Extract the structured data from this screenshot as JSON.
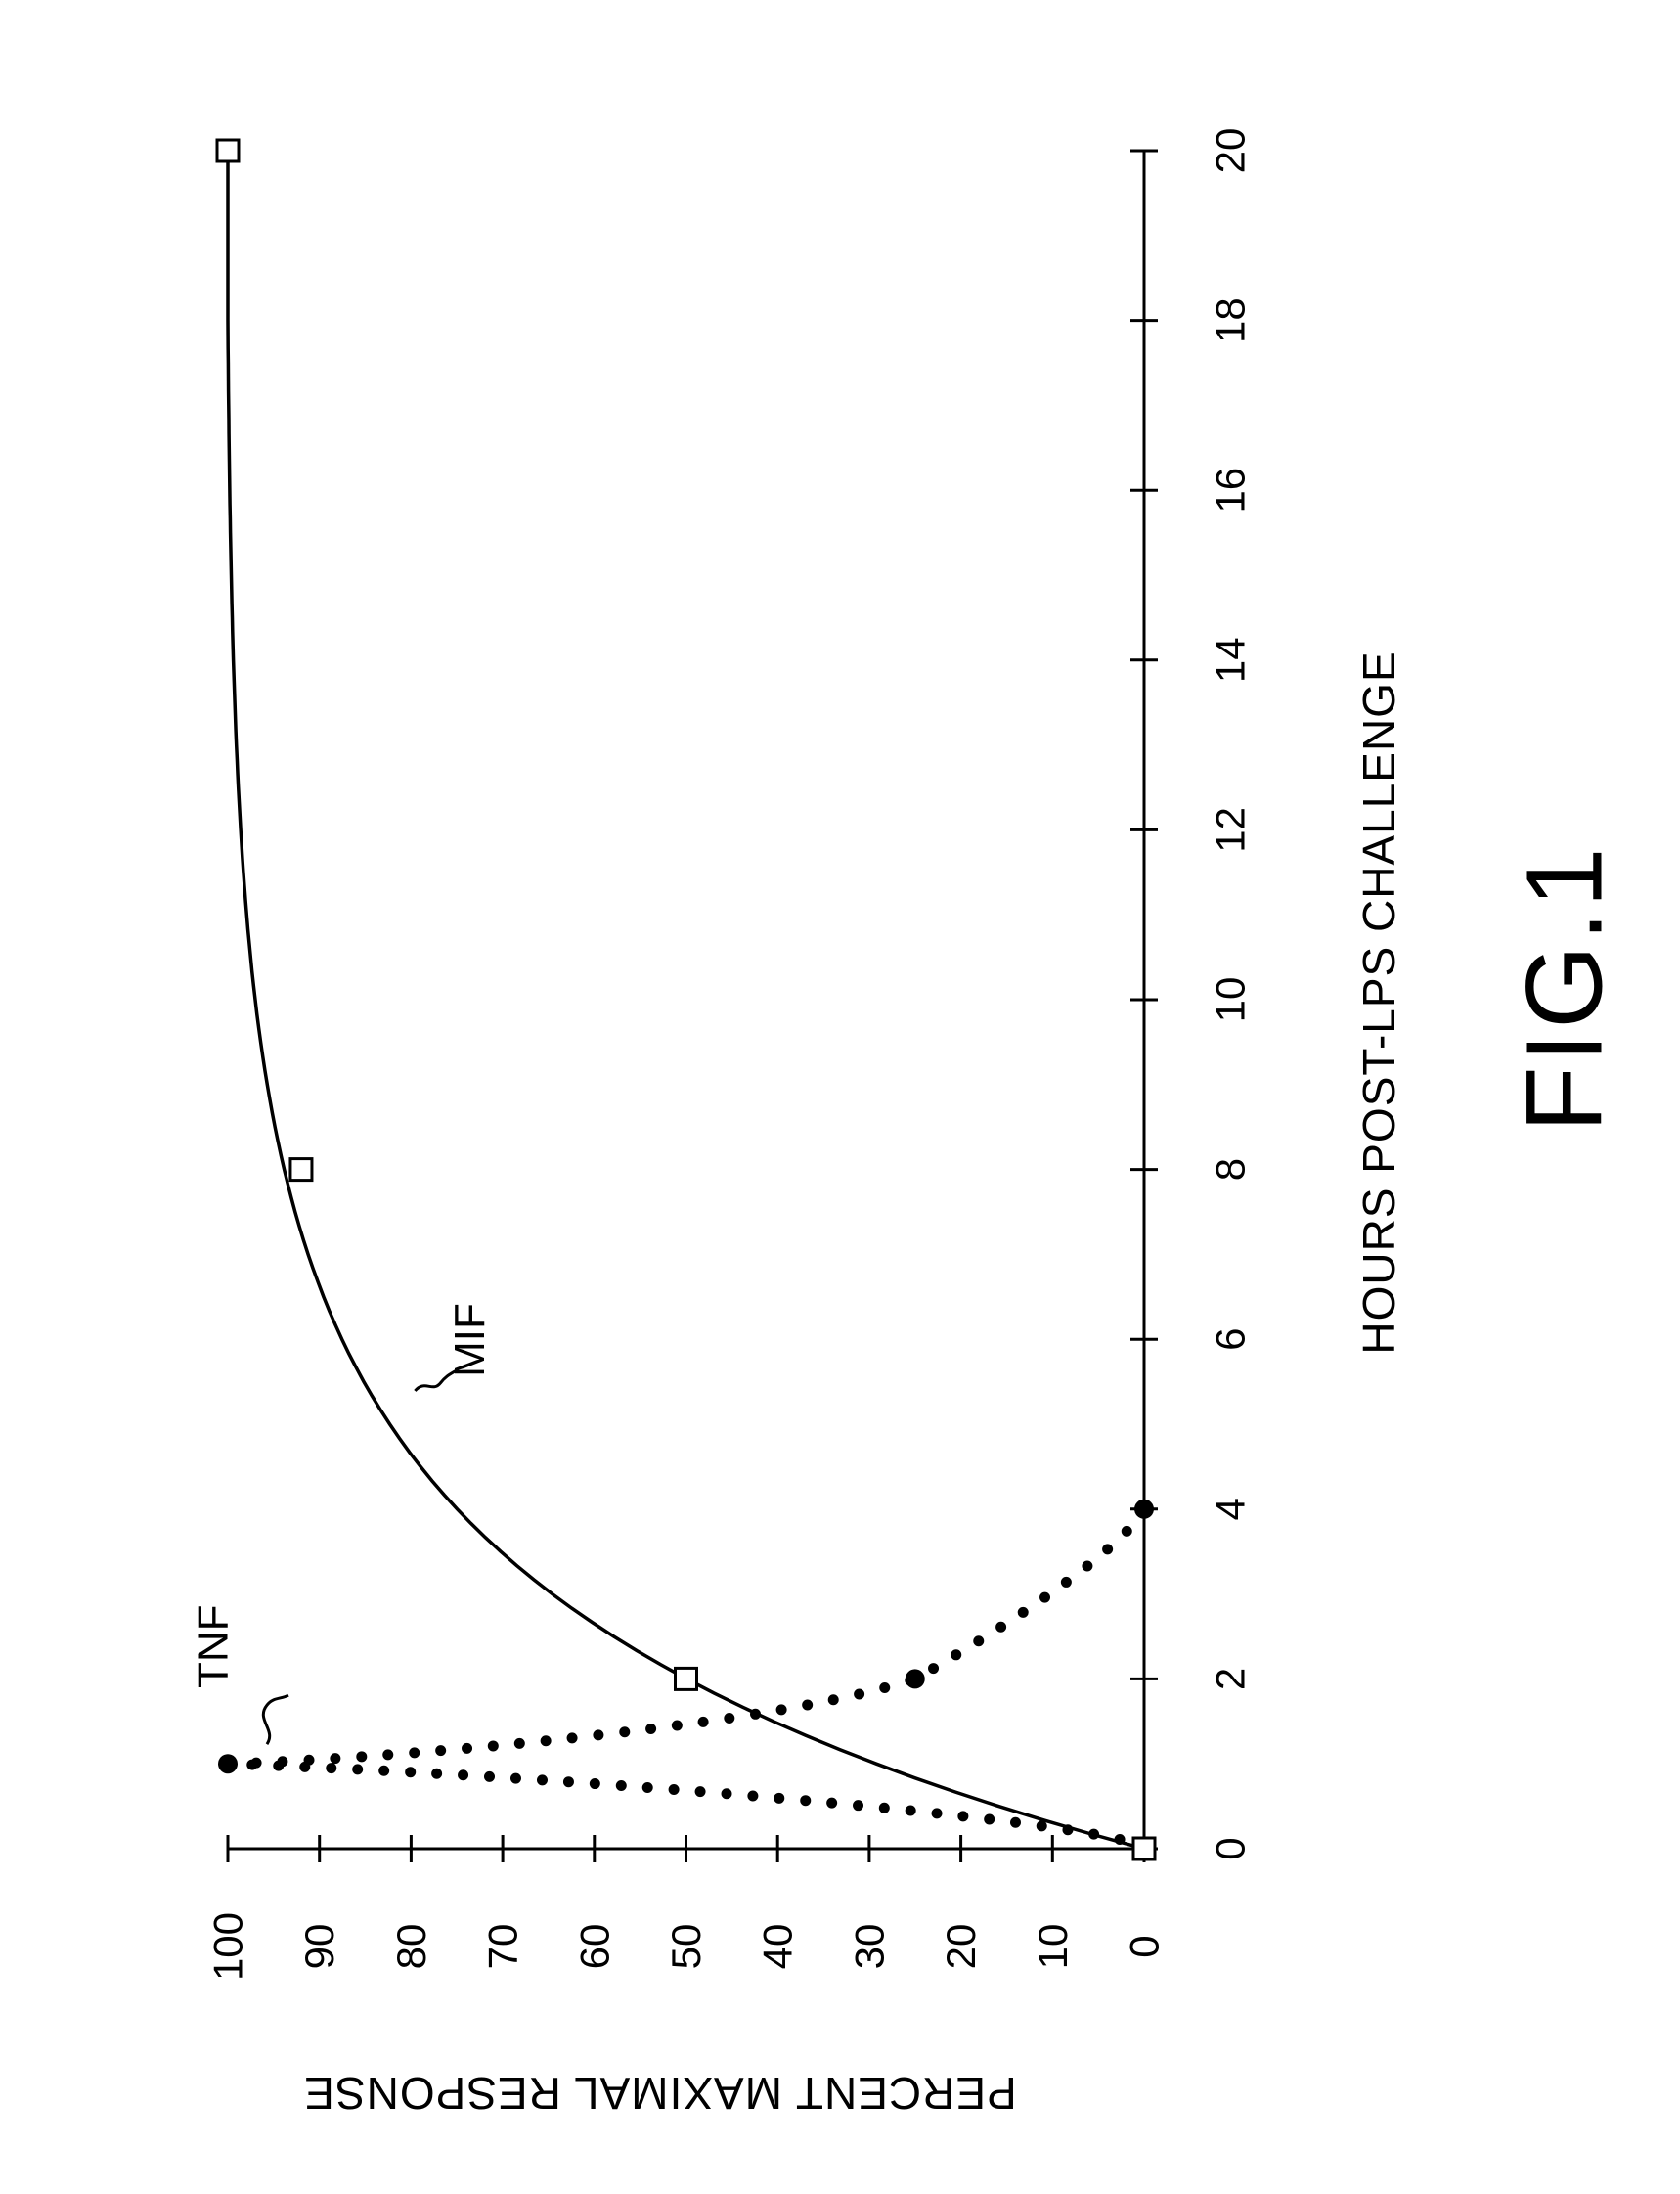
{
  "chart_data": {
    "type": "line",
    "figure_label": "FIG.1",
    "xlabel": "HOURS POST-LPS CHALLENGE",
    "ylabel": "PERCENT MAXIMAL RESPONSE",
    "xlim": [
      0,
      20
    ],
    "ylim": [
      0,
      100
    ],
    "x_ticks": [
      0,
      2,
      4,
      6,
      8,
      10,
      12,
      14,
      16,
      18,
      20
    ],
    "y_ticks": [
      0,
      10,
      20,
      30,
      40,
      50,
      60,
      70,
      80,
      90,
      100
    ],
    "grid": false,
    "orientation": "rotated 90 degrees counterclockwise on page",
    "series": [
      {
        "name": "TNF",
        "style": "dotted",
        "marker": "filled-circle",
        "points": [
          {
            "x": 0,
            "y": 0
          },
          {
            "x": 1,
            "y": 100
          },
          {
            "x": 2,
            "y": 25
          },
          {
            "x": 4,
            "y": 0
          }
        ]
      },
      {
        "name": "MIF",
        "style": "solid",
        "marker": "open-square",
        "points": [
          {
            "x": 0,
            "y": 0
          },
          {
            "x": 2,
            "y": 50
          },
          {
            "x": 8,
            "y": 92
          },
          {
            "x": 20,
            "y": 100
          }
        ]
      }
    ]
  }
}
